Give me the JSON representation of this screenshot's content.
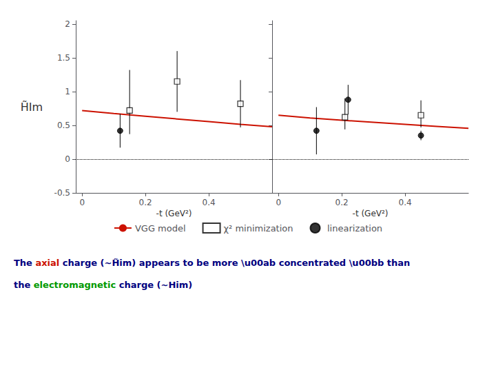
{
  "chart_data": [
    {
      "type": "scatter",
      "xlabel": "-t (GeV²)",
      "ylabel": "H̃Im",
      "xlim": [
        -0.02,
        0.6
      ],
      "ylim": [
        -0.5,
        2.05
      ],
      "xticks": [
        0.0,
        0.2,
        0.4
      ],
      "yticks": [
        -0.5,
        0.0,
        0.5,
        1.0,
        1.5,
        2.0
      ],
      "grid": false,
      "legend": "bottom",
      "hline": 0,
      "series": [
        {
          "name": "VGG model",
          "type": "line",
          "color": "#cc1100",
          "x": [
            0.0,
            0.1,
            0.2,
            0.3,
            0.4,
            0.5,
            0.6
          ],
          "values": [
            0.72,
            0.675,
            0.635,
            0.595,
            0.555,
            0.515,
            0.48
          ]
        },
        {
          "name": "χ² minimization",
          "type": "scatter",
          "marker": "square",
          "color": "black",
          "x": [
            0.15,
            0.3,
            0.5
          ],
          "values": [
            0.72,
            1.15,
            0.82
          ],
          "yerr_minus": [
            0.35,
            0.45,
            0.35
          ],
          "yerr_plus": [
            0.6,
            0.45,
            0.35
          ]
        },
        {
          "name": "linearization",
          "type": "scatter",
          "marker": "circle",
          "color": "black",
          "x": [
            0.12
          ],
          "values": [
            0.42
          ],
          "yerr_minus": [
            0.25
          ],
          "yerr_plus": [
            0.25
          ]
        }
      ],
      "annotations": [
        [
          {
            "text": "The ",
            "color": "#000080"
          },
          {
            "text": "axial",
            "color": "#cc1100"
          },
          {
            "text": " charge (~H̃im) appears to be more \\u00ab concentrated \\u00bb than",
            "color": "#000080"
          }
        ],
        [
          {
            "text": "the ",
            "color": "#000080"
          },
          {
            "text": "electromagnetic",
            "color": "#009900"
          },
          {
            "text": " charge (~Him)",
            "color": "#000080"
          }
        ]
      ]
    },
    {
      "type": "scatter",
      "xlabel": "-t (GeV²)",
      "xlim": [
        -0.02,
        0.6
      ],
      "ylim": [
        -0.5,
        2.05
      ],
      "xticks": [
        0.0,
        0.2,
        0.4
      ],
      "yticks": [
        -0.5,
        0.0,
        0.5,
        1.0,
        1.5,
        2.0
      ],
      "tick_labels": "x",
      "grid": false,
      "hline": 0,
      "series": [
        {
          "name": "VGG model",
          "type": "line",
          "color": "#cc1100",
          "x": [
            0.0,
            0.1,
            0.2,
            0.3,
            0.4,
            0.5,
            0.6
          ],
          "values": [
            0.65,
            0.61,
            0.575,
            0.545,
            0.515,
            0.485,
            0.455
          ]
        },
        {
          "name": "χ² minimization",
          "type": "scatter",
          "marker": "square",
          "color": "black",
          "x": [
            0.21,
            0.45
          ],
          "values": [
            0.62,
            0.65
          ],
          "yerr_minus": [
            0.18,
            0.18
          ],
          "yerr_plus": [
            0.28,
            0.22
          ]
        },
        {
          "name": "linearization",
          "type": "scatter",
          "marker": "circle",
          "color": "black",
          "x": [
            0.12,
            0.22,
            0.45
          ],
          "values": [
            0.42,
            0.88,
            0.35
          ],
          "yerr_minus": [
            0.35,
            0.22,
            0.07
          ],
          "yerr_plus": [
            0.35,
            0.22,
            0.07
          ]
        }
      ]
    }
  ]
}
